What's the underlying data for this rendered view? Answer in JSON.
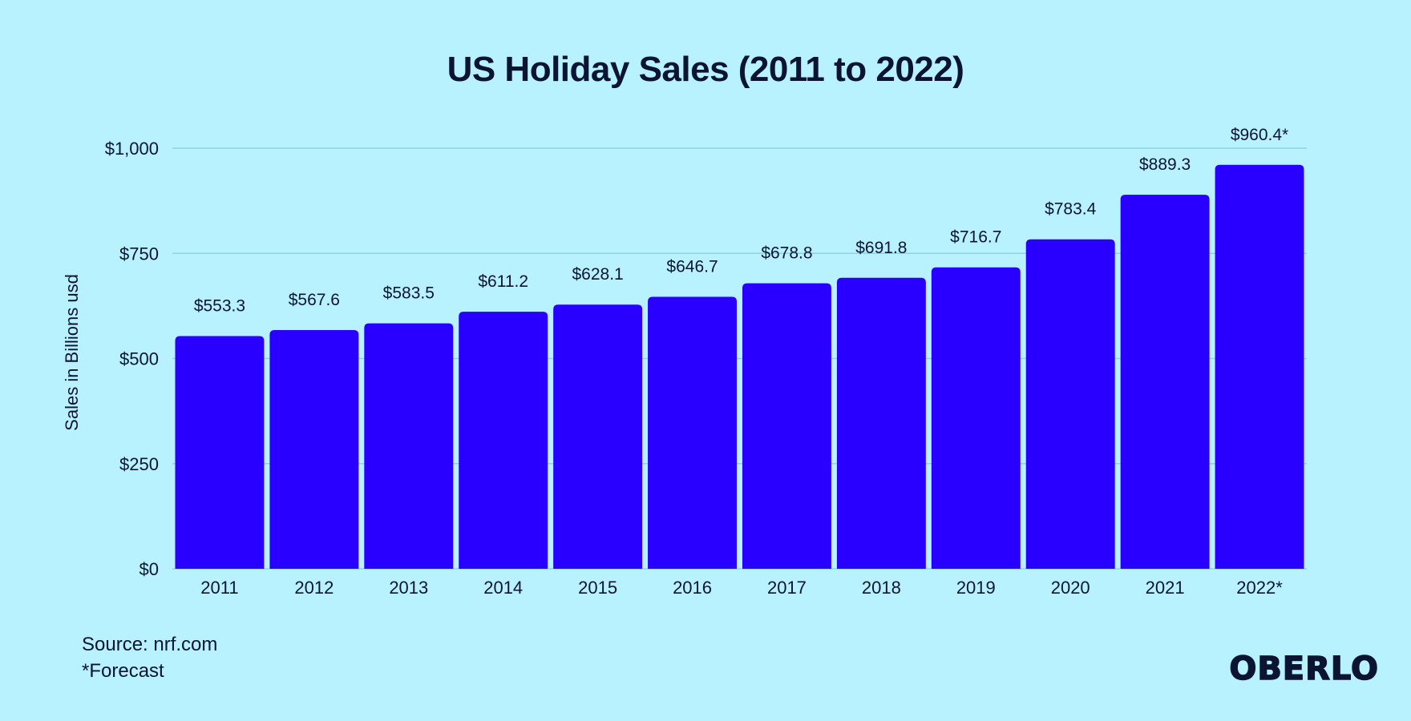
{
  "chart_data": {
    "type": "bar",
    "title": "US Holiday Sales (2011 to 2022)",
    "ylabel": "Sales in Billions usd",
    "xlabel": "",
    "categories": [
      "2011",
      "2012",
      "2013",
      "2014",
      "2015",
      "2016",
      "2017",
      "2018",
      "2019",
      "2020",
      "2021",
      "2022*"
    ],
    "values": [
      553.3,
      567.6,
      583.5,
      611.2,
      628.1,
      646.7,
      678.8,
      691.8,
      716.7,
      783.4,
      889.3,
      960.4
    ],
    "value_labels": [
      "$553.3",
      "$567.6",
      "$583.5",
      "$611.2",
      "$628.1",
      "$646.7",
      "$678.8",
      "$691.8",
      "$716.7",
      "$783.4",
      "$889.3",
      "$960.4*"
    ],
    "ylim": [
      0,
      1000
    ],
    "yticks": [
      0,
      250,
      500,
      750,
      1000
    ],
    "ytick_labels": [
      "$0",
      "$250",
      "$500",
      "$750",
      "$1,000"
    ],
    "grid": true,
    "bar_color": "#2900ff",
    "grid_color": "#8fd3e3"
  },
  "footer": {
    "source": "Source: nrf.com",
    "note": "*Forecast"
  },
  "brand": {
    "logo_text": "OBERLO"
  },
  "colors": {
    "background": "#b8f1ff",
    "text": "#0b1433"
  }
}
